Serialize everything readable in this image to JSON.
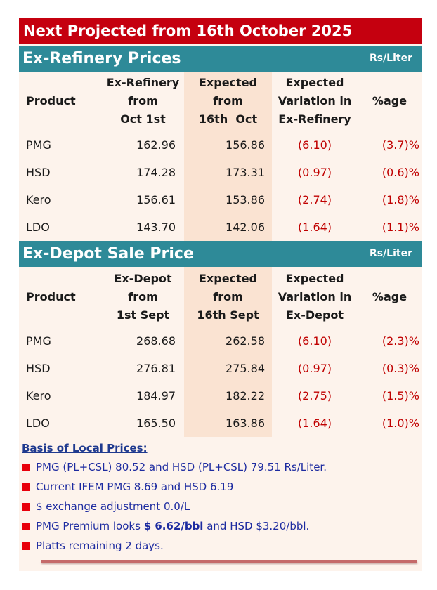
{
  "banner": "Next Projected from 16th October 2025",
  "ex_refinery": {
    "title": "Ex-Refinery Prices",
    "unit": "Rs/Liter",
    "headers": {
      "product": "Product",
      "current": [
        "Ex-Refinery",
        "from",
        "Oct 1st"
      ],
      "expected": [
        "Expected",
        "from",
        "16th  Oct"
      ],
      "variation": [
        "Expected",
        "Variation in",
        "Ex-Refinery"
      ],
      "pct": "%age"
    },
    "rows": [
      {
        "product": "PMG",
        "current": "162.96",
        "expected": "156.86",
        "variation": "(6.10)",
        "pct": "(3.7)%"
      },
      {
        "product": "HSD",
        "current": "174.28",
        "expected": "173.31",
        "variation": "(0.97)",
        "pct": "(0.6)%"
      },
      {
        "product": "Kero",
        "current": "156.61",
        "expected": "153.86",
        "variation": "(2.74)",
        "pct": "(1.8)%"
      },
      {
        "product": "LDO",
        "current": "143.70",
        "expected": "142.06",
        "variation": "(1.64)",
        "pct": "(1.1)%"
      }
    ]
  },
  "ex_depot": {
    "title": "Ex-Depot Sale Price",
    "unit": "Rs/Liter",
    "headers": {
      "product": "Product",
      "current": [
        "Ex-Depot",
        "from",
        "1st Sept"
      ],
      "expected": [
        "Expected",
        "from",
        "16th Sept"
      ],
      "variation": [
        "Expected",
        "Variation in",
        "Ex-Depot"
      ],
      "pct": "%age"
    },
    "rows": [
      {
        "product": "PMG",
        "current": "268.68",
        "expected": "262.58",
        "variation": "(6.10)",
        "pct": "(2.3)%"
      },
      {
        "product": "HSD",
        "current": "276.81",
        "expected": "275.84",
        "variation": "(0.97)",
        "pct": "(0.3)%"
      },
      {
        "product": "Kero",
        "current": "184.97",
        "expected": "182.22",
        "variation": "(2.75)",
        "pct": "(1.5)%"
      },
      {
        "product": "LDO",
        "current": "165.50",
        "expected": "163.86",
        "variation": "(1.64)",
        "pct": "(1.0)%"
      }
    ]
  },
  "basis": {
    "title": "Basis of Local Prices:",
    "bullet1": "PMG (PL+CSL) 80.52 and HSD (PL+CSL) 79.51 Rs/Liter.",
    "bullet2": "Current IFEM PMG 8.69 and HSD 6.19",
    "bullet3": "$ exchange adjustment 0.0/L",
    "bullet4": {
      "pre": "PMG Premium looks ",
      "bold": "$ 6.62/bbl",
      "post": " and HSD $3.20/bbl."
    },
    "bullet5": "Platts remaining 2 days."
  },
  "colors": {
    "banner": "#c5000f",
    "section_bar": "#2e8a98",
    "card_bg": "#fdf3ec",
    "negative": "#c00000",
    "bullet_text": "#1d2ba0",
    "bullet_marker": "#e8000b"
  },
  "icons": {
    "bullet_marker": "red-square-icon"
  }
}
